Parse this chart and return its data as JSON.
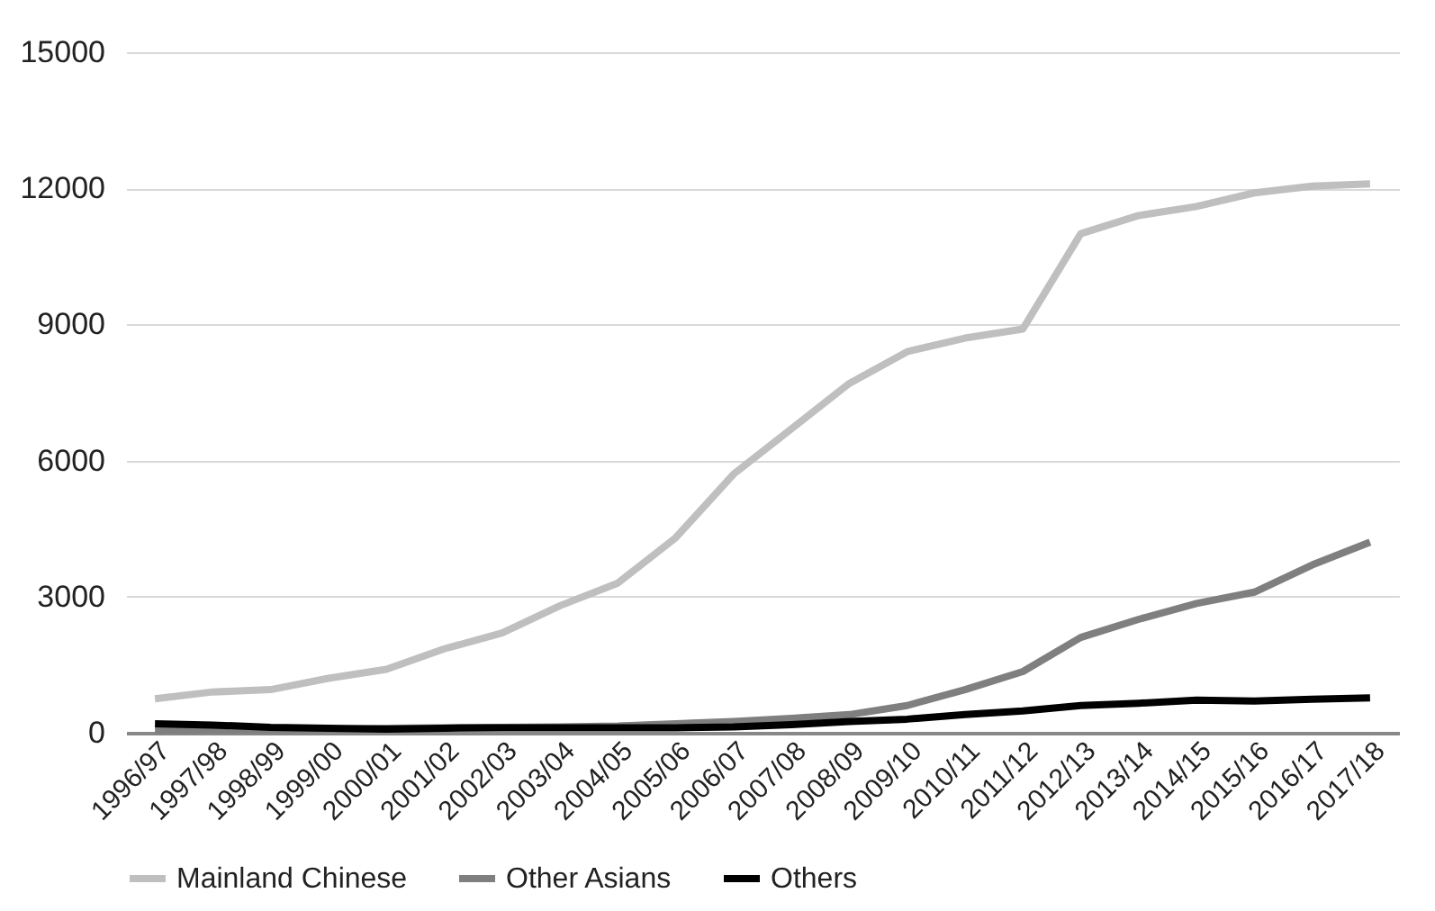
{
  "chart_data": {
    "type": "line",
    "categories": [
      "1996/97",
      "1997/98",
      "1998/99",
      "1999/00",
      "2000/01",
      "2001/02",
      "2002/03",
      "2003/04",
      "2004/05",
      "2005/06",
      "2006/07",
      "2007/08",
      "2008/09",
      "2009/10",
      "2010/11",
      "2011/12",
      "2012/13",
      "2013/14",
      "2014/15",
      "2015/16",
      "2016/17",
      "2017/18"
    ],
    "series": [
      {
        "name": "Mainland Chinese",
        "color": "#bfbfbf",
        "values": [
          750,
          900,
          950,
          1200,
          1400,
          1850,
          2200,
          2800,
          3300,
          4300,
          5700,
          6700,
          7700,
          8400,
          8700,
          8900,
          11000,
          11400,
          11600,
          11900,
          12050,
          12100
        ]
      },
      {
        "name": "Other Asians",
        "color": "#7f7f7f",
        "values": [
          50,
          60,
          70,
          80,
          100,
          110,
          120,
          130,
          150,
          200,
          250,
          320,
          400,
          600,
          950,
          1350,
          2100,
          2500,
          2850,
          3100,
          3700,
          4200
        ]
      },
      {
        "name": "Others",
        "color": "#000000",
        "values": [
          200,
          170,
          120,
          100,
          80,
          100,
          110,
          110,
          110,
          110,
          130,
          180,
          250,
          300,
          400,
          480,
          600,
          650,
          720,
          700,
          740,
          770
        ]
      }
    ],
    "ylim": [
      0,
      15000
    ],
    "yticks": [
      0,
      3000,
      6000,
      9000,
      12000,
      15000
    ],
    "grid": "y",
    "legend": "bottom",
    "marker": "none",
    "line_style": "solid"
  }
}
